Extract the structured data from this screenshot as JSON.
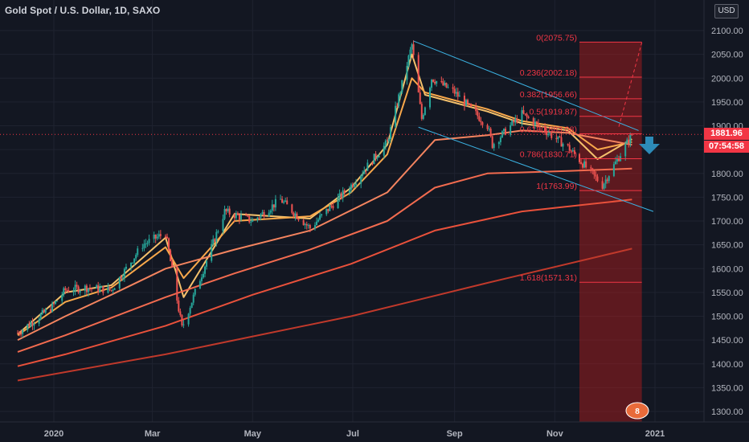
{
  "header": {
    "title": "Gold Spot / U.S. Dollar, 1D, SAXO",
    "currency": "USD"
  },
  "price_tags": {
    "last_price": "1881.96",
    "countdown": "07:54:58",
    "last_price_color": "#f23645",
    "countdown_color": "#f23645"
  },
  "colors": {
    "background": "#131722",
    "up_candle": "#26a69a",
    "down_candle": "#ef5350",
    "channel": "#3bb3e4",
    "fib_zone": "#b71c1c",
    "fib_line": "#f23645",
    "arrow": "#2d8bb8"
  },
  "annotation": {
    "arrow_icon": "down-arrow-icon",
    "badge_text": "8"
  },
  "chart_data": {
    "type": "candlestick",
    "title": "Gold Spot / U.S. Dollar, 1D, SAXO",
    "ylim": [
      1270,
      2130
    ],
    "y_ticks": [
      "2100.00",
      "2050.00",
      "2000.00",
      "1950.00",
      "1900.00",
      "1850.00",
      "1800.00",
      "1750.00",
      "1700.00",
      "1650.00",
      "1600.00",
      "1550.00",
      "1500.00",
      "1450.00",
      "1400.00",
      "1350.00",
      "1300.00"
    ],
    "x_ticks": [
      "2020",
      "Mar",
      "May",
      "Jul",
      "Sep",
      "Nov",
      "2021"
    ],
    "price_anchors": [
      {
        "date": "2019-12-10",
        "close": 1465
      },
      {
        "date": "2019-12-31",
        "close": 1520
      },
      {
        "date": "2020-01-08",
        "close": 1555
      },
      {
        "date": "2020-01-20",
        "close": 1560
      },
      {
        "date": "2020-02-05",
        "close": 1555
      },
      {
        "date": "2020-02-24",
        "close": 1650
      },
      {
        "date": "2020-03-09",
        "close": 1675
      },
      {
        "date": "2020-03-19",
        "close": 1475
      },
      {
        "date": "2020-04-14",
        "close": 1720
      },
      {
        "date": "2020-05-01",
        "close": 1700
      },
      {
        "date": "2020-05-18",
        "close": 1745
      },
      {
        "date": "2020-06-05",
        "close": 1685
      },
      {
        "date": "2020-06-30",
        "close": 1775
      },
      {
        "date": "2020-07-22",
        "close": 1865
      },
      {
        "date": "2020-08-06",
        "close": 2070
      },
      {
        "date": "2020-08-12",
        "close": 1915
      },
      {
        "date": "2020-08-18",
        "close": 2000
      },
      {
        "date": "2020-09-01",
        "close": 1970
      },
      {
        "date": "2020-09-21",
        "close": 1900
      },
      {
        "date": "2020-09-24",
        "close": 1860
      },
      {
        "date": "2020-10-12",
        "close": 1925
      },
      {
        "date": "2020-11-09",
        "close": 1855
      },
      {
        "date": "2020-11-30",
        "close": 1775
      },
      {
        "date": "2020-12-18",
        "close": 1882
      }
    ],
    "moving_averages": [
      {
        "name": "",
        "color": "#f5c16c",
        "values": [
          {
            "date": "2019-12-10",
            "y": 1462
          },
          {
            "date": "2020-01-08",
            "y": 1550
          },
          {
            "date": "2020-02-05",
            "y": 1565
          },
          {
            "date": "2020-03-09",
            "y": 1665
          },
          {
            "date": "2020-03-20",
            "y": 1540
          },
          {
            "date": "2020-04-20",
            "y": 1715
          },
          {
            "date": "2020-06-05",
            "y": 1705
          },
          {
            "date": "2020-06-30",
            "y": 1770
          },
          {
            "date": "2020-07-22",
            "y": 1860
          },
          {
            "date": "2020-08-06",
            "y": 2050
          },
          {
            "date": "2020-08-14",
            "y": 1965
          },
          {
            "date": "2020-09-21",
            "y": 1930
          },
          {
            "date": "2020-10-12",
            "y": 1905
          },
          {
            "date": "2020-11-09",
            "y": 1890
          },
          {
            "date": "2020-11-27",
            "y": 1830
          },
          {
            "date": "2020-12-18",
            "y": 1872
          }
        ]
      },
      {
        "name": "",
        "color": "#f9a84b",
        "values": [
          {
            "date": "2019-12-10",
            "y": 1460
          },
          {
            "date": "2020-01-08",
            "y": 1530
          },
          {
            "date": "2020-02-05",
            "y": 1560
          },
          {
            "date": "2020-03-09",
            "y": 1645
          },
          {
            "date": "2020-03-20",
            "y": 1580
          },
          {
            "date": "2020-04-20",
            "y": 1700
          },
          {
            "date": "2020-06-05",
            "y": 1710
          },
          {
            "date": "2020-06-30",
            "y": 1760
          },
          {
            "date": "2020-07-22",
            "y": 1840
          },
          {
            "date": "2020-08-06",
            "y": 2000
          },
          {
            "date": "2020-08-14",
            "y": 1970
          },
          {
            "date": "2020-09-21",
            "y": 1935
          },
          {
            "date": "2020-10-12",
            "y": 1910
          },
          {
            "date": "2020-11-09",
            "y": 1895
          },
          {
            "date": "2020-11-27",
            "y": 1850
          },
          {
            "date": "2020-12-18",
            "y": 1866
          }
        ]
      },
      {
        "name": "",
        "color": "#f4845f",
        "values": [
          {
            "date": "2019-12-10",
            "y": 1450
          },
          {
            "date": "2020-01-08",
            "y": 1500
          },
          {
            "date": "2020-02-05",
            "y": 1545
          },
          {
            "date": "2020-03-09",
            "y": 1600
          },
          {
            "date": "2020-04-20",
            "y": 1640
          },
          {
            "date": "2020-06-05",
            "y": 1680
          },
          {
            "date": "2020-07-22",
            "y": 1760
          },
          {
            "date": "2020-08-20",
            "y": 1870
          },
          {
            "date": "2020-09-21",
            "y": 1880
          },
          {
            "date": "2020-10-12",
            "y": 1890
          },
          {
            "date": "2020-11-09",
            "y": 1885
          },
          {
            "date": "2020-12-18",
            "y": 1860
          }
        ]
      },
      {
        "name": "",
        "color": "#f26b4f",
        "values": [
          {
            "date": "2019-12-10",
            "y": 1425
          },
          {
            "date": "2020-01-08",
            "y": 1460
          },
          {
            "date": "2020-03-09",
            "y": 1540
          },
          {
            "date": "2020-04-20",
            "y": 1590
          },
          {
            "date": "2020-06-05",
            "y": 1640
          },
          {
            "date": "2020-07-22",
            "y": 1700
          },
          {
            "date": "2020-08-20",
            "y": 1770
          },
          {
            "date": "2020-09-21",
            "y": 1800
          },
          {
            "date": "2020-11-09",
            "y": 1805
          },
          {
            "date": "2020-12-18",
            "y": 1810
          }
        ]
      },
      {
        "name": "",
        "color": "#e9513b",
        "values": [
          {
            "date": "2019-12-10",
            "y": 1395
          },
          {
            "date": "2020-01-08",
            "y": 1420
          },
          {
            "date": "2020-03-09",
            "y": 1480
          },
          {
            "date": "2020-05-01",
            "y": 1545
          },
          {
            "date": "2020-06-30",
            "y": 1610
          },
          {
            "date": "2020-08-20",
            "y": 1680
          },
          {
            "date": "2020-10-12",
            "y": 1720
          },
          {
            "date": "2020-12-18",
            "y": 1745
          }
        ]
      },
      {
        "name": "",
        "color": "#c0392b",
        "values": [
          {
            "date": "2019-12-10",
            "y": 1365
          },
          {
            "date": "2020-03-09",
            "y": 1420
          },
          {
            "date": "2020-06-30",
            "y": 1500
          },
          {
            "date": "2020-09-21",
            "y": 1570
          },
          {
            "date": "2020-12-18",
            "y": 1642
          }
        ]
      }
    ],
    "channel": {
      "upper": [
        {
          "date": "2020-08-07",
          "y": 2078
        },
        {
          "date": "2020-12-22",
          "y": 1890
        }
      ],
      "lower": [
        {
          "date": "2020-08-10",
          "y": 1897
        },
        {
          "date": "2020-12-31",
          "y": 1720
        }
      ]
    },
    "fibonacci": {
      "start_date": "2020-11-16",
      "end_date": "2020-12-24",
      "levels": [
        {
          "label": "0(2075.75)",
          "price": 2075.75
        },
        {
          "label": "0.236(2002.18)",
          "price": 2002.18
        },
        {
          "label": "0.382(1956.66)",
          "price": 1956.66
        },
        {
          "label": "0.5(1919.87)",
          "price": 1919.87
        },
        {
          "label": "0.618(1883.08)",
          "price": 1883.08
        },
        {
          "label": "0.786(1830.71)",
          "price": 1830.71
        },
        {
          "label": "1(1763.99)",
          "price": 1763.99
        },
        {
          "label": "1.618(1571.31)",
          "price": 1571.31
        }
      ]
    },
    "projection": [
      {
        "date": "2020-12-10",
        "y": 1898
      },
      {
        "date": "2020-12-24",
        "y": 2075
      }
    ],
    "last_price_line": 1881.96
  }
}
